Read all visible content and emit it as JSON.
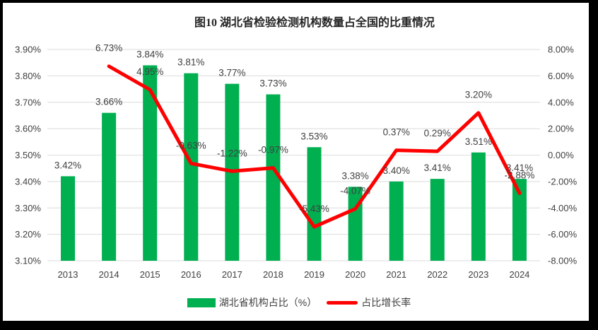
{
  "title": "图10 湖北省检验检测机构数量占全国的比重情况",
  "chart_data": {
    "type": "bar",
    "subtype": "combo-bar-line",
    "title": "图10 湖北省检验检测机构数量占全国的比重情况",
    "categories": [
      "2013",
      "2014",
      "2015",
      "2016",
      "2017",
      "2018",
      "2019",
      "2020",
      "2021",
      "2022",
      "2023",
      "2024"
    ],
    "series": [
      {
        "name": "湖北省机构占比（%）",
        "type": "bar",
        "axis": "left",
        "color": "#00AF50",
        "values": [
          3.42,
          3.66,
          3.84,
          3.81,
          3.77,
          3.73,
          3.53,
          3.38,
          3.4,
          3.41,
          3.51,
          3.41
        ],
        "labels": [
          "3.42%",
          "3.66%",
          "3.84%",
          "3.81%",
          "3.77%",
          "3.73%",
          "3.53%",
          "3.38%",
          "3.40%",
          "3.41%",
          "3.51%",
          "3.41%"
        ]
      },
      {
        "name": "占比增长率",
        "type": "line",
        "axis": "right",
        "color": "#FF0000",
        "values": [
          null,
          6.73,
          4.95,
          -0.63,
          -1.22,
          -0.97,
          -5.43,
          -4.07,
          0.37,
          0.29,
          3.2,
          -2.88
        ],
        "labels": [
          null,
          "6.73%",
          "4.95%",
          "-0.63%",
          "-1.22%",
          "-0.97%",
          "-5.43%",
          "-4.07%",
          "0.37%",
          "0.29%",
          "3.20%",
          "-2.88%"
        ]
      }
    ],
    "left_axis": {
      "min": 3.1,
      "max": 3.9,
      "step": 0.1,
      "ticks": [
        "3.90%",
        "3.80%",
        "3.70%",
        "3.60%",
        "3.50%",
        "3.40%",
        "3.30%",
        "3.20%",
        "3.10%"
      ]
    },
    "right_axis": {
      "min": -8.0,
      "max": 8.0,
      "step": 2.0,
      "ticks": [
        "8.00%",
        "6.00%",
        "4.00%",
        "2.00%",
        "0.00%",
        "-2.00%",
        "-4.00%",
        "-6.00%",
        "-8.00%"
      ]
    },
    "grid": true,
    "data_labels": true,
    "legend_position": "bottom"
  }
}
